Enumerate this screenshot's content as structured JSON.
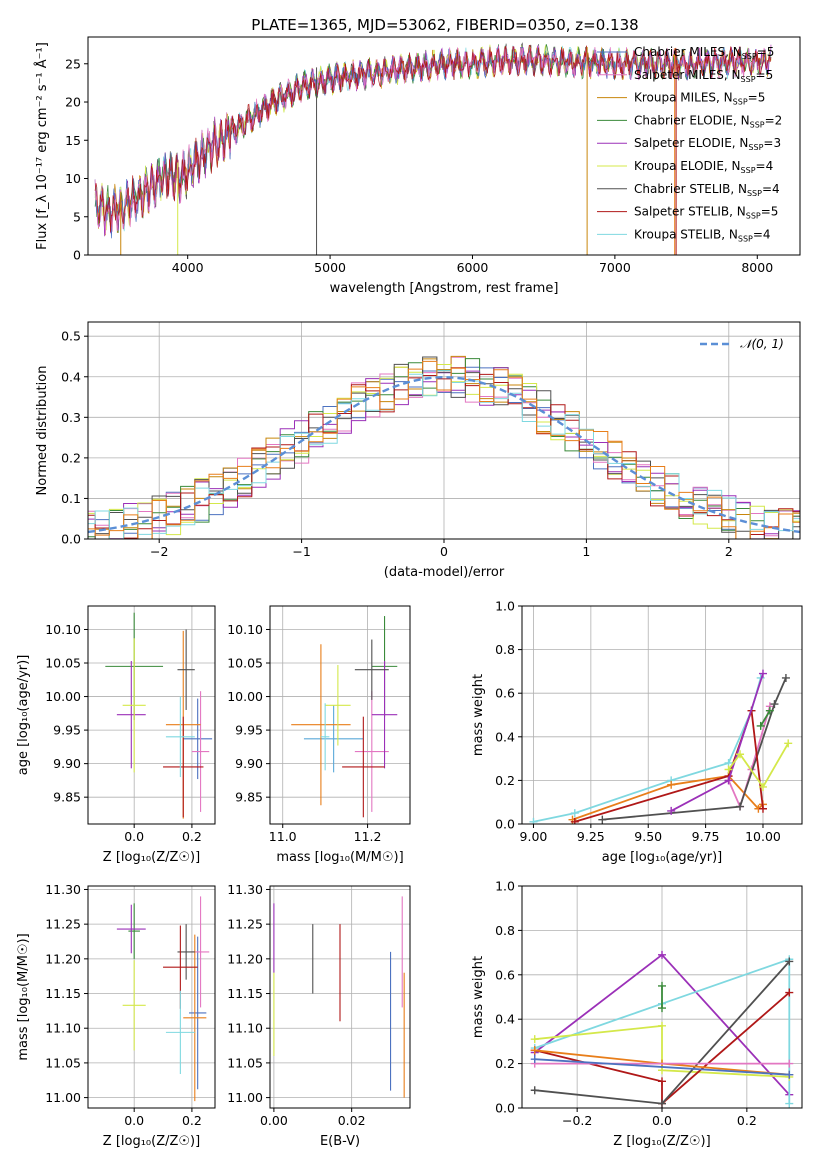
{
  "figure": {
    "title": "PLATE=1365, MJD=53062, FIBERID=0350, z=0.138"
  },
  "colors": {
    "Chabrier MILES": "#4c72c0",
    "Salpeter MILES": "#e377c2",
    "Kroupa MILES": "#c8860b",
    "Chabrier ELODIE": "#3a8a3a",
    "Salpeter ELODIE": "#9b30b8",
    "Kroupa ELODIE": "#d4e84a",
    "Chabrier STELIB": "#505050",
    "Salpeter STELIB": "#b01818",
    "Kroupa STELIB": "#7fd8e0",
    "orange": "#e87e1a",
    "sky": "#5aa8d8",
    "normal_curve": "#5b8fd6"
  },
  "chart_data": [
    {
      "id": "spectrum",
      "type": "line",
      "title": "PLATE=1365, MJD=53062, FIBERID=0350, z=0.138",
      "xlabel": "wavelength [Angstrom, rest frame]",
      "ylabel": "Flux [f_λ 10⁻¹⁷ erg cm⁻² s⁻¹ Å⁻¹]",
      "xlim": [
        3300,
        8300
      ],
      "ylim": [
        0,
        28.5
      ],
      "xticks": [
        4000,
        5000,
        6000,
        7000,
        8000
      ],
      "yticks": [
        0,
        5,
        10,
        15,
        20,
        25
      ],
      "grid": false,
      "legend_position": "upper-right",
      "continuum_x": [
        3350,
        3450,
        3550,
        3650,
        3750,
        3850,
        3950,
        4050,
        4150,
        4300,
        4450,
        4600,
        4800,
        5000,
        5200,
        5400,
        5600,
        5800,
        6000,
        6200,
        6400,
        6600,
        6800,
        7000,
        7200,
        7400,
        7600,
        7800,
        8000,
        8100
      ],
      "continuum_y": [
        6.5,
        5.5,
        6.5,
        7.5,
        9.0,
        10.5,
        10.0,
        12.0,
        14.0,
        16.0,
        18.0,
        20.0,
        22.0,
        23.0,
        23.5,
        24.0,
        24.5,
        25.0,
        25.0,
        25.5,
        25.5,
        25.3,
        25.2,
        25.0,
        25.0,
        25.0,
        25.0,
        25.2,
        25.3,
        25.5
      ],
      "series": [
        {
          "name": "Chabrier MILES, N_SSP=5"
        },
        {
          "name": "Salpeter MILES, N_SSP=5"
        },
        {
          "name": "Kroupa MILES, N_SSP=5"
        },
        {
          "name": "Chabrier ELODIE, N_SSP=2"
        },
        {
          "name": "Salpeter ELODIE, N_SSP=3"
        },
        {
          "name": "Kroupa ELODIE, N_SSP=4"
        },
        {
          "name": "Chabrier STELIB, N_SSP=4"
        },
        {
          "name": "Salpeter STELIB, N_SSP=5"
        },
        {
          "name": "Kroupa STELIB, N_SSP=4"
        }
      ]
    },
    {
      "id": "residuals",
      "type": "line",
      "xlabel": "(data-model)/error",
      "ylabel": "Normed distribution",
      "xlim": [
        -2.5,
        2.5
      ],
      "ylim": [
        0,
        0.535
      ],
      "xticks": [
        -2,
        -1,
        0,
        1,
        2
      ],
      "yticks": [
        0.0,
        0.1,
        0.2,
        0.3,
        0.4,
        0.5
      ],
      "grid": true,
      "legend_position": "upper-right",
      "legend": "𝒩(0, 1)",
      "bin_width": 0.1
    },
    {
      "id": "age-vs-Z",
      "type": "scatter",
      "xlabel": "Z [log₁₀(Z/Z☉)]",
      "ylabel": "age [log₁₀(age/yr)]",
      "xlim": [
        -0.16,
        0.28
      ],
      "ylim": [
        9.81,
        10.135
      ],
      "xticks": [
        0.0,
        0.2
      ],
      "yticks": [
        9.85,
        9.9,
        9.95,
        10.0,
        10.05,
        10.1
      ],
      "grid": true,
      "points": [
        {
          "c": "Chabrier MILES",
          "x": 0.22,
          "y": 9.937,
          "xerr": 0.05,
          "yerr": 0.06
        },
        {
          "c": "Salpeter MILES",
          "x": 0.23,
          "y": 9.918,
          "xerr": 0.03,
          "yerr": 0.09
        },
        {
          "c": "orange",
          "x": 0.17,
          "y": 9.958,
          "xerr": 0.06,
          "yerr": 0.14
        },
        {
          "c": "Chabrier ELODIE",
          "x": 0.0,
          "y": 10.045,
          "xerr": 0.1,
          "yerr": 0.08
        },
        {
          "c": "Salpeter ELODIE",
          "x": -0.01,
          "y": 9.973,
          "xerr": 0.05,
          "yerr": 0.08
        },
        {
          "c": "Kroupa ELODIE",
          "x": 0.0,
          "y": 9.987,
          "xerr": 0.04,
          "yerr": 0.1
        },
        {
          "c": "Chabrier STELIB",
          "x": 0.18,
          "y": 10.04,
          "xerr": 0.03,
          "yerr": 0.06
        },
        {
          "c": "Salpeter STELIB",
          "x": 0.17,
          "y": 9.895,
          "xerr": 0.07,
          "yerr": 0.075
        },
        {
          "c": "Kroupa STELIB",
          "x": 0.16,
          "y": 9.94,
          "xerr": 0.05,
          "yerr": 0.06
        }
      ]
    },
    {
      "id": "age-vs-mass",
      "type": "scatter",
      "xlabel": "mass [log₁₀(M/M☉)]",
      "ylabel": "",
      "xlim": [
        10.97,
        11.3
      ],
      "ylim": [
        9.81,
        10.135
      ],
      "xticks": [
        11.0,
        11.2
      ],
      "yticks": [
        9.85,
        9.9,
        9.95,
        10.0,
        10.05,
        10.1
      ],
      "grid": true,
      "points": [
        {
          "c": "sky",
          "x": 11.12,
          "y": 9.937,
          "xerr": 0.07,
          "yerr": 0.05
        },
        {
          "c": "Salpeter MILES",
          "x": 11.21,
          "y": 9.918,
          "xerr": 0.04,
          "yerr": 0.09
        },
        {
          "c": "orange",
          "x": 11.09,
          "y": 9.958,
          "xerr": 0.07,
          "yerr": 0.12
        },
        {
          "c": "Chabrier ELODIE",
          "x": 11.24,
          "y": 10.045,
          "xerr": 0.03,
          "yerr": 0.075
        },
        {
          "c": "Salpeter ELODIE",
          "x": 11.24,
          "y": 9.973,
          "xerr": 0.03,
          "yerr": 0.08
        },
        {
          "c": "Kroupa ELODIE",
          "x": 11.13,
          "y": 9.987,
          "xerr": 0.03,
          "yerr": 0.06
        },
        {
          "c": "Chabrier STELIB",
          "x": 11.21,
          "y": 10.04,
          "xerr": 0.04,
          "yerr": 0.045
        },
        {
          "c": "Salpeter STELIB",
          "x": 11.19,
          "y": 9.895,
          "xerr": 0.05,
          "yerr": 0.075
        },
        {
          "c": "Kroupa STELIB",
          "x": 11.1,
          "y": 9.94,
          "xerr": 0.01,
          "yerr": 0.05
        }
      ]
    },
    {
      "id": "weight-vs-age",
      "type": "line",
      "xlabel": "age [log₁₀(age/yr)]",
      "ylabel": "mass weight",
      "xlim": [
        8.95,
        10.17
      ],
      "ylim": [
        0,
        1.0
      ],
      "xticks": [
        9.0,
        9.25,
        9.5,
        9.75,
        10.0
      ],
      "xticklabels": [
        "9.00",
        "9.25",
        "9.50",
        "9.75",
        "10.00"
      ],
      "yticks": [
        0.0,
        0.2,
        0.4,
        0.6,
        0.8,
        1.0
      ],
      "grid": true,
      "series": [
        {
          "c": "Kroupa STELIB",
          "x": [
            9.0,
            9.18,
            9.6,
            9.85,
            9.95,
            9.99
          ],
          "y": [
            0.01,
            0.05,
            0.2,
            0.28,
            0.52,
            0.67
          ]
        },
        {
          "c": "orange",
          "x": [
            9.17,
            9.6,
            9.85,
            9.98,
            10.0
          ],
          "y": [
            0.02,
            0.18,
            0.22,
            0.07,
            0.09
          ]
        },
        {
          "c": "Salpeter MILES",
          "x": [
            9.85,
            9.9,
            9.95,
            10.03
          ],
          "y": [
            0.2,
            0.08,
            0.25,
            0.54
          ]
        },
        {
          "c": "Chabrier STELIB",
          "x": [
            9.3,
            9.9,
            10.05,
            10.1
          ],
          "y": [
            0.02,
            0.08,
            0.55,
            0.67
          ]
        },
        {
          "c": "Salpeter STELIB",
          "x": [
            9.18,
            9.85,
            9.95,
            10.0
          ],
          "y": [
            0.01,
            0.22,
            0.52,
            0.07
          ]
        },
        {
          "c": "Salpeter ELODIE",
          "x": [
            9.6,
            9.85,
            10.0
          ],
          "y": [
            0.06,
            0.2,
            0.69
          ]
        },
        {
          "c": "Kroupa ELODIE",
          "x": [
            9.85,
            9.9,
            10.0,
            10.11
          ],
          "y": [
            0.25,
            0.32,
            0.17,
            0.37
          ]
        },
        {
          "c": "Chabrier ELODIE",
          "x": [
            9.99,
            10.03
          ],
          "y": [
            0.45,
            0.52
          ]
        }
      ]
    },
    {
      "id": "mass-vs-Z",
      "type": "scatter",
      "xlabel": "Z [log₁₀(Z/Z☉)]",
      "ylabel": "mass [log₁₀(M/M☉)]",
      "xlim": [
        -0.16,
        0.28
      ],
      "ylim": [
        10.985,
        11.305
      ],
      "xticks": [
        0.0,
        0.2
      ],
      "yticks": [
        11.0,
        11.05,
        11.1,
        11.15,
        11.2,
        11.25,
        11.3
      ],
      "grid": true,
      "points": [
        {
          "c": "Chabrier MILES",
          "x": 0.22,
          "y": 11.122,
          "xerr": 0.03,
          "yerr": 0.11
        },
        {
          "c": "Salpeter MILES",
          "x": 0.23,
          "y": 11.21,
          "xerr": 0.03,
          "yerr": 0.08
        },
        {
          "c": "orange",
          "x": 0.21,
          "y": 11.115,
          "xerr": 0.04,
          "yerr": 0.12
        },
        {
          "c": "Chabrier ELODIE",
          "x": 0.0,
          "y": 11.24,
          "xerr": 0.02,
          "yerr": 0.04
        },
        {
          "c": "Salpeter ELODIE",
          "x": -0.01,
          "y": 11.243,
          "xerr": 0.05,
          "yerr": 0.035
        },
        {
          "c": "Kroupa ELODIE",
          "x": 0.0,
          "y": 11.133,
          "xerr": 0.04,
          "yerr": 0.065
        },
        {
          "c": "Chabrier STELIB",
          "x": 0.18,
          "y": 11.21,
          "xerr": 0.03,
          "yerr": 0.04
        },
        {
          "c": "Salpeter STELIB",
          "x": 0.16,
          "y": 11.188,
          "xerr": 0.06,
          "yerr": 0.06
        },
        {
          "c": "Kroupa STELIB",
          "x": 0.16,
          "y": 11.094,
          "xerr": 0.05,
          "yerr": 0.06
        }
      ]
    },
    {
      "id": "mass-vs-EBV",
      "type": "scatter",
      "xlabel": "E(B-V)",
      "ylabel": "",
      "xlim": [
        -0.001,
        0.035
      ],
      "ylim": [
        10.985,
        11.305
      ],
      "xticks": [
        0.0,
        0.02
      ],
      "xticklabels": [
        "0.00",
        "0.02"
      ],
      "yticks": [
        11.0,
        11.05,
        11.1,
        11.15,
        11.2,
        11.25,
        11.3
      ],
      "grid": true,
      "points": [
        {
          "c": "Salpeter ELODIE",
          "x": 0.0,
          "y": 11.23,
          "yerr": 0.05
        },
        {
          "c": "Kroupa ELODIE",
          "x": 0.0,
          "y": 11.12,
          "yerr": 0.06
        },
        {
          "c": "Chabrier STELIB",
          "x": 0.01,
          "y": 11.2,
          "yerr": 0.05
        },
        {
          "c": "Salpeter STELIB",
          "x": 0.017,
          "y": 11.18,
          "yerr": 0.07
        },
        {
          "c": "Chabrier MILES",
          "x": 0.03,
          "y": 11.11,
          "yerr": 0.1
        },
        {
          "c": "Salpeter MILES",
          "x": 0.033,
          "y": 11.21,
          "yerr": 0.08
        },
        {
          "c": "orange",
          "x": 0.0335,
          "y": 11.09,
          "yerr": 0.09
        }
      ]
    },
    {
      "id": "weight-vs-Z",
      "type": "line",
      "xlabel": "Z [log₁₀(Z/Z☉)]",
      "ylabel": "mass weight",
      "xlim": [
        -0.33,
        0.33
      ],
      "ylim": [
        0,
        1.0
      ],
      "xticks": [
        -0.2,
        0.0,
        0.2
      ],
      "yticks": [
        0.0,
        0.2,
        0.4,
        0.6,
        0.8,
        1.0
      ],
      "grid": true,
      "series": [
        {
          "c": "Salpeter ELODIE",
          "x": [
            -0.3,
            0.0,
            0.3
          ],
          "y": [
            0.25,
            0.69,
            0.06
          ]
        },
        {
          "c": "Kroupa STELIB",
          "x": [
            -0.3,
            0.0,
            0.3,
            0.3
          ],
          "y": [
            0.27,
            0.47,
            0.67,
            0.02
          ]
        },
        {
          "c": "Kroupa ELODIE",
          "x": [
            -0.3,
            0.0,
            0.0,
            0.3
          ],
          "y": [
            0.31,
            0.37,
            0.17,
            0.14
          ]
        },
        {
          "c": "Salpeter STELIB",
          "x": [
            -0.3,
            0.0,
            0.0,
            0.3
          ],
          "y": [
            0.26,
            0.12,
            0.02,
            0.52
          ]
        },
        {
          "c": "Chabrier STELIB",
          "x": [
            -0.3,
            0.0,
            0.3
          ],
          "y": [
            0.08,
            0.02,
            0.66
          ]
        },
        {
          "c": "orange",
          "x": [
            -0.3,
            0.0,
            0.3
          ],
          "y": [
            0.26,
            0.2,
            0.15
          ]
        },
        {
          "c": "Salpeter MILES",
          "x": [
            -0.3,
            0.3
          ],
          "y": [
            0.2,
            0.2
          ]
        },
        {
          "c": "Chabrier ELODIE",
          "x": [
            0.0,
            0.0
          ],
          "y": [
            0.45,
            0.55
          ]
        },
        {
          "c": "Chabrier MILES",
          "x": [
            -0.3,
            0.3
          ],
          "y": [
            0.22,
            0.15
          ]
        }
      ]
    }
  ]
}
